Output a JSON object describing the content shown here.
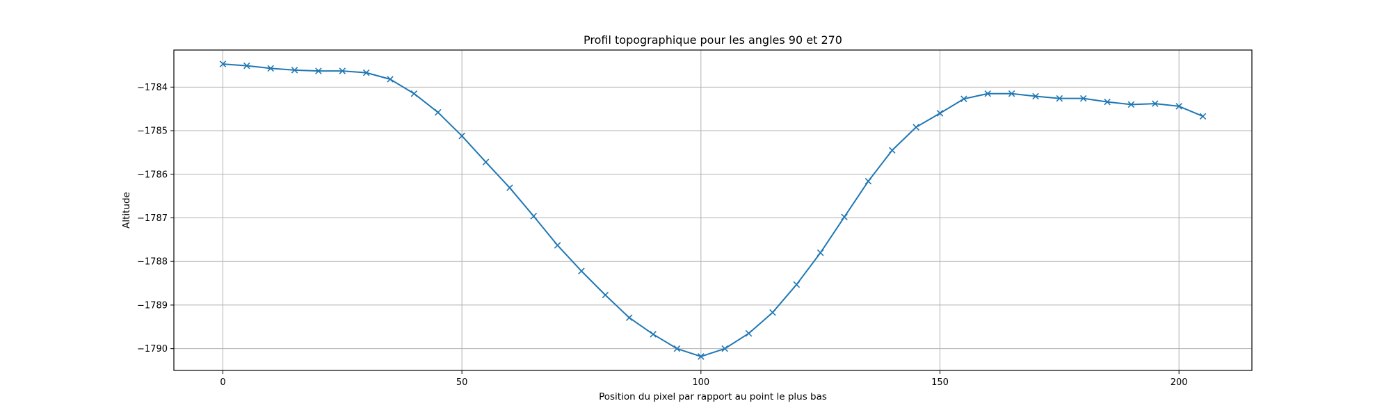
{
  "chart_data": {
    "type": "line",
    "title": "Profil topographique pour les angles 90 et 270",
    "xlabel": "Position du pixel par rapport au point le plus bas",
    "ylabel": "Altitude",
    "xlim": [
      -10.25,
      215.25
    ],
    "ylim": [
      -1790.5,
      -1783.15
    ],
    "xticks": [
      0,
      50,
      100,
      150,
      200
    ],
    "xtick_labels": [
      "0",
      "50",
      "100",
      "150",
      "200"
    ],
    "yticks": [
      -1790,
      -1789,
      -1788,
      -1787,
      -1786,
      -1785,
      -1784
    ],
    "ytick_labels": [
      "−1790",
      "−1789",
      "−1788",
      "−1787",
      "−1786",
      "−1785",
      "−1784"
    ],
    "grid": true,
    "series": [
      {
        "color": "#1f77b4",
        "marker": "x",
        "x": [
          0,
          5,
          10,
          15,
          20,
          25,
          30,
          35,
          40,
          45,
          50,
          55,
          60,
          65,
          70,
          75,
          80,
          85,
          90,
          95,
          100,
          105,
          110,
          115,
          120,
          125,
          130,
          135,
          140,
          145,
          150,
          155,
          160,
          165,
          170,
          175,
          180,
          185,
          190,
          195,
          200,
          205
        ],
        "y": [
          -1783.47,
          -1783.51,
          -1783.57,
          -1783.61,
          -1783.63,
          -1783.63,
          -1783.67,
          -1783.82,
          -1784.15,
          -1784.58,
          -1785.12,
          -1785.72,
          -1786.31,
          -1786.96,
          -1787.63,
          -1788.22,
          -1788.77,
          -1789.29,
          -1789.67,
          -1790.0,
          -1790.18,
          -1790.0,
          -1789.65,
          -1789.17,
          -1788.53,
          -1787.8,
          -1786.98,
          -1786.16,
          -1785.45,
          -1784.92,
          -1784.6,
          -1784.27,
          -1784.15,
          -1784.15,
          -1784.21,
          -1784.26,
          -1784.26,
          -1784.34,
          -1784.4,
          -1784.38,
          -1784.44,
          -1784.67
        ]
      }
    ]
  }
}
